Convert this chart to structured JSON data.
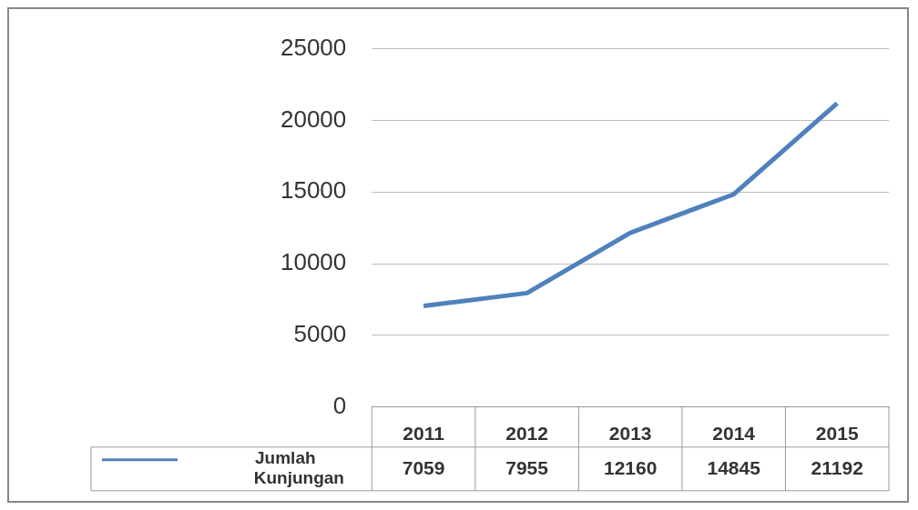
{
  "chart_data": {
    "type": "line",
    "categories": [
      "2011",
      "2012",
      "2013",
      "2014",
      "2015"
    ],
    "series": [
      {
        "name": "Jumlah Kunjungan",
        "color": "#4f81bd",
        "values": [
          7059,
          7955,
          12160,
          14845,
          21192
        ]
      }
    ],
    "ylim": [
      0,
      25000
    ],
    "yticks": [
      0,
      5000,
      10000,
      15000,
      20000,
      25000
    ],
    "grid": "y",
    "legend": "bottom",
    "data_labels": true,
    "marker": "none",
    "line_style": "solid"
  }
}
